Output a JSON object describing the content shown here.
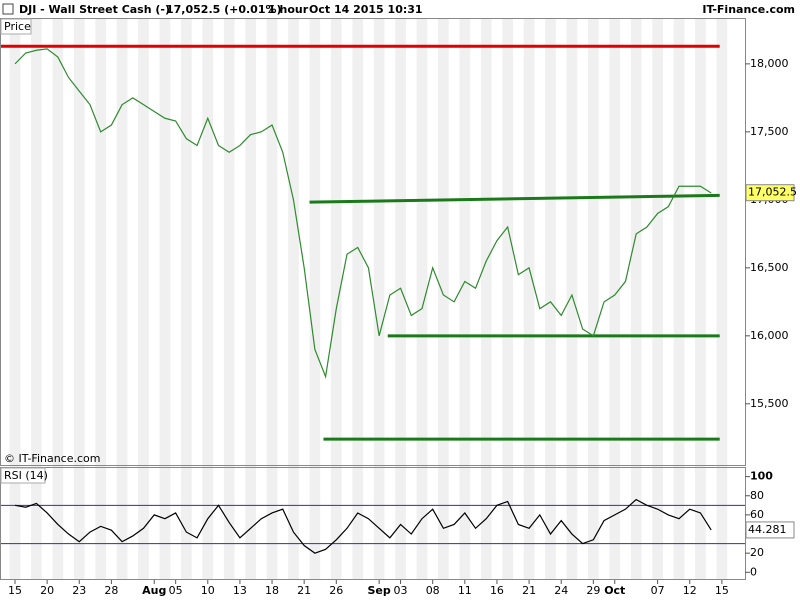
{
  "header": {
    "instrument": "DJI - Wall Street Cash (-)",
    "quote": "17,052.5 (+0.01%)",
    "timeframe": "1 hour",
    "datetime": "Oct 14 2015 10:31",
    "brand": "IT-Finance.com"
  },
  "chart_data": [
    {
      "type": "line",
      "panel_label": "Price",
      "copyright": "© IT-Finance.com",
      "color": "#2e8b2e",
      "values": [
        18000,
        18080,
        18100,
        18110,
        18050,
        17900,
        17800,
        17700,
        17500,
        17550,
        17700,
        17750,
        17700,
        17650,
        17600,
        17580,
        17450,
        17400,
        17600,
        17400,
        17350,
        17400,
        17480,
        17500,
        17550,
        17350,
        17000,
        16500,
        15900,
        15700,
        16200,
        16600,
        16650,
        16500,
        16000,
        16300,
        16350,
        16150,
        16200,
        16500,
        16300,
        16250,
        16400,
        16350,
        16550,
        16700,
        16800,
        16450,
        16500,
        16200,
        16250,
        16150,
        16300,
        16050,
        16000,
        16250,
        16300,
        16400,
        16750,
        16800,
        16900,
        16950,
        17100,
        17100,
        17100,
        17050,
        null
      ],
      "ylim": [
        15050,
        18330
      ],
      "yticks": [
        {
          "value": 15500,
          "label": "15,500"
        },
        {
          "value": 16000,
          "label": "16,000"
        },
        {
          "value": 16500,
          "label": "16,500"
        },
        {
          "value": 17000,
          "label": "17,000"
        },
        {
          "value": 17500,
          "label": "17,500"
        },
        {
          "value": 18000,
          "label": "18,000"
        }
      ],
      "last_price": {
        "value": 17052.5,
        "label": "17,052.5"
      },
      "lines": [
        {
          "color": "#e00000",
          "x": [
            -1.4,
            65.8
          ],
          "y": [
            18130,
            18130
          ]
        },
        {
          "color": "#1a7a1a",
          "x": [
            27.5,
            65.8
          ],
          "y": [
            16983,
            17033
          ]
        },
        {
          "color": "#1a7a1a",
          "x": [
            34.8,
            65.8
          ],
          "y": [
            16000,
            16000
          ]
        },
        {
          "color": "#1a7a1a",
          "x": [
            28.8,
            65.8
          ],
          "y": [
            15240,
            15240
          ]
        }
      ]
    },
    {
      "type": "line",
      "panel_label": "RSI (14)",
      "color": "#000000",
      "categories": [
        "15",
        null,
        null,
        "20",
        null,
        null,
        "23",
        null,
        null,
        "28",
        null,
        null,
        null,
        "Aug",
        null,
        "05",
        null,
        null,
        "10",
        null,
        null,
        "13",
        null,
        null,
        "18",
        null,
        null,
        "21",
        null,
        null,
        "26",
        null,
        null,
        null,
        "Sep",
        null,
        "03",
        null,
        null,
        "08",
        null,
        null,
        "11",
        null,
        null,
        "16",
        null,
        null,
        "21",
        null,
        null,
        "24",
        null,
        null,
        "29",
        null,
        "Oct",
        null,
        null,
        null,
        "07",
        null,
        null,
        "12",
        null,
        null,
        "15"
      ],
      "values": [
        70,
        68,
        72,
        62,
        50,
        40,
        32,
        42,
        48,
        44,
        32,
        38,
        46,
        60,
        56,
        62,
        42,
        36,
        56,
        70,
        52,
        36,
        46,
        56,
        62,
        66,
        42,
        28,
        20,
        24,
        34,
        46,
        62,
        56,
        46,
        36,
        50,
        40,
        56,
        66,
        46,
        50,
        62,
        46,
        56,
        70,
        74,
        50,
        46,
        60,
        40,
        54,
        40,
        30,
        34,
        54,
        60,
        66,
        76,
        70,
        66,
        60,
        56,
        66,
        62,
        44.281,
        null
      ],
      "current_value": 44.281,
      "ylim": [
        -7,
        109
      ],
      "yticks": [
        0,
        20,
        40,
        60,
        80,
        100
      ],
      "bands": [
        30,
        70
      ],
      "band_color": "#3030a0"
    }
  ]
}
